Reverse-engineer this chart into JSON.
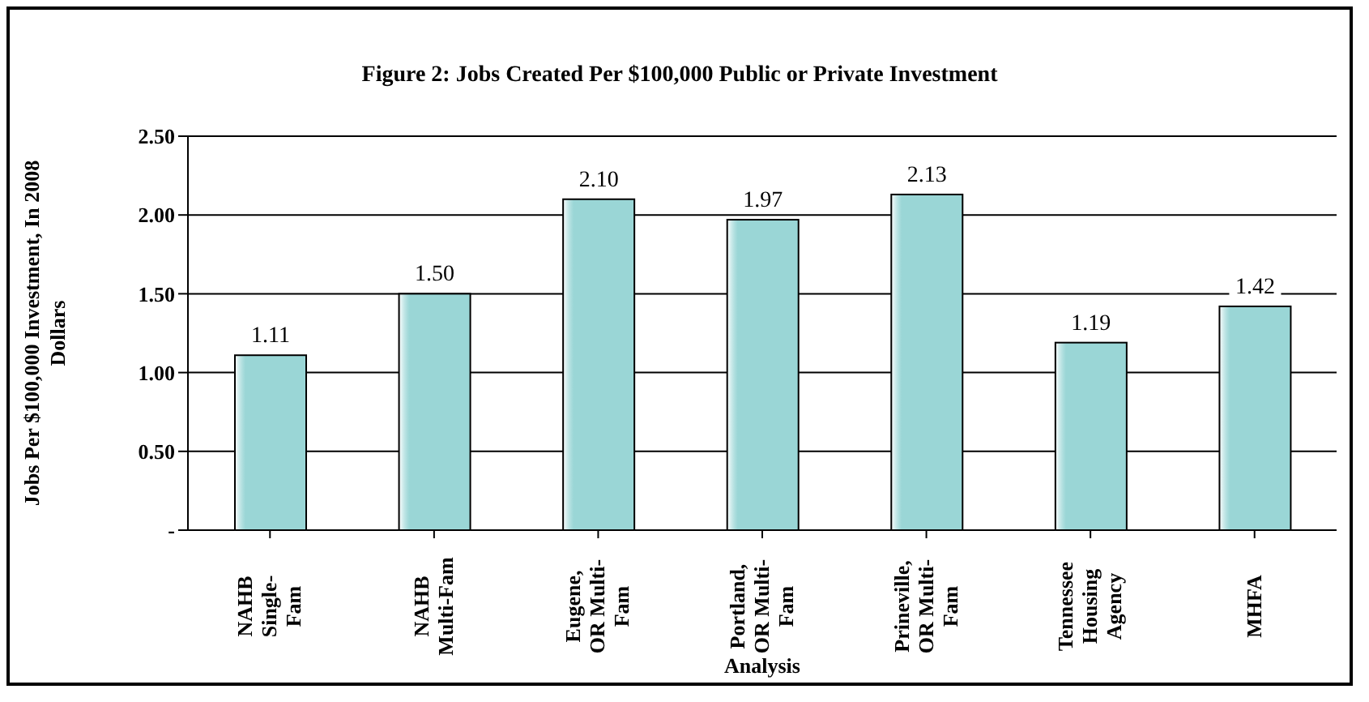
{
  "chart_data": {
    "type": "bar",
    "title": "Figure 2:  Jobs Created Per $100,000 Public or Private Investment",
    "xlabel": "Analysis",
    "ylabel": "Jobs Per $100,000 Investment, In 2008 Dollars",
    "categories": [
      "NAHB Single-Fam",
      "NAHB Multi-Fam",
      "Eugene, OR Multi-Fam",
      "Portland, OR Multi-Fam",
      "Prineville, OR Multi-Fam",
      "Tennessee Housing Agency",
      "MHFA"
    ],
    "values": [
      1.11,
      1.5,
      2.1,
      1.97,
      2.13,
      1.19,
      1.42
    ],
    "value_labels": [
      "1.11",
      "1.50",
      "2.10",
      "1.97",
      "2.13",
      "1.19",
      "1.42"
    ],
    "color": "#9ad6d6",
    "ylim": [
      0,
      2.5
    ],
    "yticks": [
      {
        "value": 0,
        "label": "-"
      },
      {
        "value": 0.5,
        "label": "0.50"
      },
      {
        "value": 1,
        "label": "1.00"
      },
      {
        "value": 1.5,
        "label": "1.50"
      },
      {
        "value": 2,
        "label": "2.00"
      },
      {
        "value": 2.5,
        "label": "2.50"
      }
    ],
    "grid": "y",
    "legend": false
  }
}
